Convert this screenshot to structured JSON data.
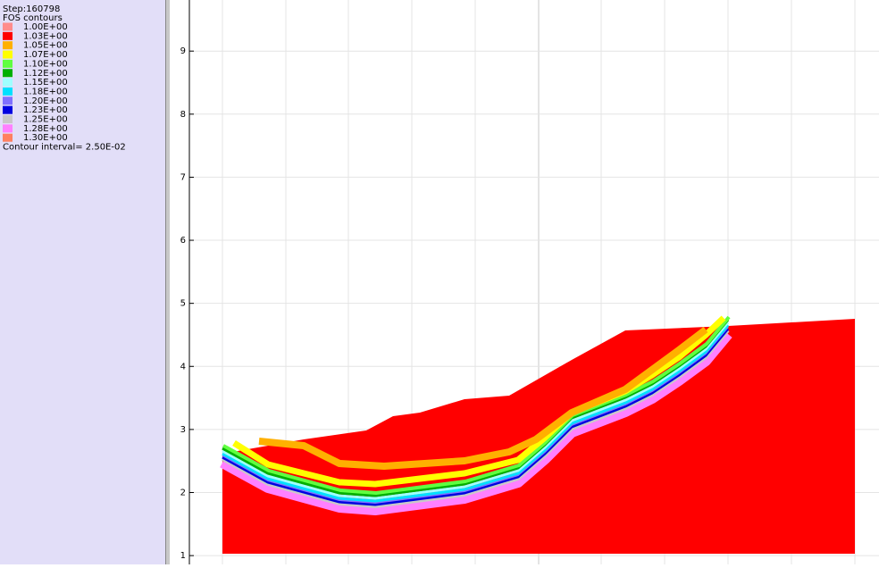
{
  "status": {
    "step": "Step:160798",
    "title": "FOS contours",
    "legend": [
      {
        "label": "1.00E+00",
        "color": "#ff8c8c"
      },
      {
        "label": "1.03E+00",
        "color": "#ff0000"
      },
      {
        "label": "1.05E+00",
        "color": "#ffb000"
      },
      {
        "label": "1.07E+00",
        "color": "#ffff00"
      },
      {
        "label": "1.10E+00",
        "color": "#60ff40"
      },
      {
        "label": "1.12E+00",
        "color": "#00b000"
      },
      {
        "label": "1.15E+00",
        "color": "#a0ffff"
      },
      {
        "label": "1.18E+00",
        "color": "#00e0ff"
      },
      {
        "label": "1.20E+00",
        "color": "#8070ff"
      },
      {
        "label": "1.23E+00",
        "color": "#0000e0"
      },
      {
        "label": "1.25E+00",
        "color": "#c8c8c8"
      },
      {
        "label": "1.28E+00",
        "color": "#ff80ff"
      },
      {
        "label": "1.30E+00",
        "color": "#ff8060"
      }
    ],
    "interval": "Contour interval=  2.50E-02"
  },
  "plot": {
    "ylim": [
      0.86,
      9.81
    ],
    "yticks": [
      1,
      2,
      3,
      4,
      5,
      6,
      7,
      8,
      9
    ]
  }
}
